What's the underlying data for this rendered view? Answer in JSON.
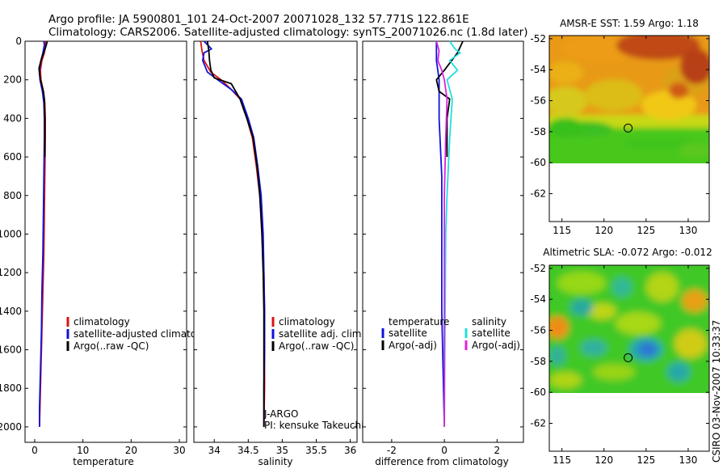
{
  "header": {
    "title_line1": "Argo profile: JA 5900801_101 24-Oct-2007 20071028_132 57.771S 122.861E",
    "title_line2": "Climatology: CARS2006. Satellite-adjusted climatology: synTS_20071026.nc (1.8d later)"
  },
  "footer": {
    "credit": "CSIRO 03-Nov-2007 10:33:37"
  },
  "chart_data": [
    {
      "id": "temperature",
      "type": "line",
      "xlabel": "temperature",
      "ylabel": "",
      "xlim": [
        -2,
        31.5
      ],
      "ylim": [
        2080,
        0
      ],
      "xticks": [
        0,
        10,
        20,
        30
      ],
      "yticks": [
        0,
        200,
        400,
        600,
        800,
        1000,
        1200,
        1400,
        1600,
        1800,
        2000
      ],
      "legend": {
        "position": "center-right",
        "entries": [
          {
            "label": "climatology",
            "color": "#dd1111"
          },
          {
            "label": "satellite-adjusted climatology",
            "color": "#1111dd"
          },
          {
            "label": "Argo(..raw -QC)",
            "color": "#000000"
          }
        ]
      },
      "series": [
        {
          "name": "climatology",
          "color": "#dd1111",
          "points": [
            [
              2.2,
              0
            ],
            [
              2.3,
              20
            ],
            [
              2.0,
              60
            ],
            [
              1.5,
              100
            ],
            [
              1.2,
              150
            ],
            [
              1.3,
              200
            ],
            [
              1.8,
              260
            ],
            [
              2.1,
              320
            ],
            [
              2.2,
              400
            ],
            [
              2.2,
              500
            ],
            [
              2.1,
              700
            ],
            [
              2.0,
              900
            ],
            [
              1.9,
              1100
            ],
            [
              1.7,
              1300
            ],
            [
              1.5,
              1500
            ],
            [
              1.3,
              1700
            ],
            [
              1.1,
              1900
            ],
            [
              1.0,
              2000
            ]
          ]
        },
        {
          "name": "satellite-adjusted climatology",
          "color": "#1111dd",
          "points": [
            [
              1.9,
              0
            ],
            [
              2.0,
              20
            ],
            [
              1.7,
              60
            ],
            [
              1.3,
              100
            ],
            [
              1.0,
              150
            ],
            [
              1.1,
              200
            ],
            [
              1.6,
              260
            ],
            [
              1.9,
              320
            ],
            [
              2.0,
              400
            ],
            [
              2.0,
              500
            ],
            [
              1.9,
              700
            ],
            [
              1.8,
              900
            ],
            [
              1.7,
              1100
            ],
            [
              1.5,
              1300
            ],
            [
              1.4,
              1500
            ],
            [
              1.2,
              1700
            ],
            [
              1.0,
              1900
            ],
            [
              1.0,
              2000
            ]
          ]
        },
        {
          "name": "Argo(..raw -QC)",
          "color": "#000000",
          "points": [
            [
              2.6,
              0
            ],
            [
              2.4,
              20
            ],
            [
              2.0,
              50
            ],
            [
              1.3,
              100
            ],
            [
              0.9,
              140
            ],
            [
              1.0,
              170
            ],
            [
              1.2,
              200
            ],
            [
              1.8,
              260
            ],
            [
              2.0,
              300
            ],
            [
              2.1,
              400
            ],
            [
              2.1,
              600
            ]
          ]
        }
      ]
    },
    {
      "id": "salinity",
      "type": "line",
      "xlabel": "salinity",
      "ylabel": "",
      "xlim": [
        33.7,
        36.1
      ],
      "ylim": [
        2080,
        0
      ],
      "xticks": [
        34,
        34.5,
        35,
        35.5,
        36
      ],
      "yticks": [],
      "legend": {
        "position": "center-right",
        "entries": [
          {
            "label": "climatology",
            "color": "#dd1111"
          },
          {
            "label": "satellite adj. clim.",
            "color": "#1111dd"
          },
          {
            "label": "Argo(..raw -QC)",
            "color": "#000000"
          }
        ]
      },
      "annotations": [
        "J-ARGO",
        "PI: kensuke Takeuchi"
      ],
      "series": [
        {
          "name": "climatology",
          "color": "#dd1111",
          "points": [
            [
              33.8,
              0
            ],
            [
              33.82,
              50
            ],
            [
              33.85,
              100
            ],
            [
              33.95,
              160
            ],
            [
              34.1,
              200
            ],
            [
              34.25,
              250
            ],
            [
              34.38,
              300
            ],
            [
              34.48,
              400
            ],
            [
              34.56,
              500
            ],
            [
              34.62,
              650
            ],
            [
              34.67,
              800
            ],
            [
              34.71,
              1000
            ],
            [
              34.73,
              1200
            ],
            [
              34.74,
              1400
            ],
            [
              34.74,
              1600
            ],
            [
              34.74,
              1800
            ],
            [
              34.73,
              2000
            ]
          ]
        },
        {
          "name": "satellite adj. clim.",
          "color": "#1111dd",
          "points": [
            [
              33.85,
              0
            ],
            [
              33.96,
              40
            ],
            [
              33.85,
              60
            ],
            [
              33.83,
              100
            ],
            [
              33.9,
              160
            ],
            [
              34.05,
              200
            ],
            [
              34.25,
              250
            ],
            [
              34.4,
              300
            ],
            [
              34.5,
              400
            ],
            [
              34.58,
              500
            ],
            [
              34.64,
              650
            ],
            [
              34.69,
              800
            ],
            [
              34.72,
              1000
            ],
            [
              34.73,
              1200
            ],
            [
              34.74,
              1400
            ],
            [
              34.74,
              1600
            ],
            [
              34.73,
              1800
            ],
            [
              34.73,
              2000
            ]
          ]
        },
        {
          "name": "Argo(..raw -QC)",
          "color": "#000000",
          "points": [
            [
              33.9,
              0
            ],
            [
              33.92,
              50
            ],
            [
              33.93,
              100
            ],
            [
              33.95,
              150
            ],
            [
              34.0,
              190
            ],
            [
              34.25,
              220
            ],
            [
              34.38,
              300
            ],
            [
              34.48,
              400
            ],
            [
              34.57,
              500
            ],
            [
              34.63,
              650
            ],
            [
              34.67,
              800
            ],
            [
              34.7,
              1000
            ],
            [
              34.72,
              1200
            ],
            [
              34.73,
              1400
            ],
            [
              34.73,
              1600
            ],
            [
              34.73,
              1800
            ],
            [
              34.73,
              2000
            ]
          ]
        }
      ]
    },
    {
      "id": "difference",
      "type": "line",
      "xlabel": "difference from climatology",
      "ylabel": "",
      "xlim": [
        -3.1,
        3.0
      ],
      "ylim": [
        2080,
        0
      ],
      "xticks": [
        -2,
        0,
        2
      ],
      "yticks": [],
      "legend": {
        "position": "center",
        "columns": [
          {
            "heading": "temperature",
            "entries": [
              {
                "label": "satellite",
                "color": "#1111dd"
              },
              {
                "label": "Argo(-adj)",
                "color": "#000000"
              }
            ]
          },
          {
            "heading": "salinity",
            "entries": [
              {
                "label": "satellite",
                "color": "#22dddd"
              },
              {
                "label": "Argo(-adj)",
                "color": "#dd22dd"
              }
            ]
          }
        ]
      },
      "series": [
        {
          "name": "temperature satellite",
          "color": "#1111dd",
          "points": [
            [
              -0.3,
              0
            ],
            [
              -0.3,
              100
            ],
            [
              -0.2,
              200
            ],
            [
              -0.2,
              400
            ],
            [
              -0.1,
              700
            ],
            [
              -0.1,
              1000
            ],
            [
              -0.1,
              1400
            ],
            [
              0.0,
              2000
            ]
          ]
        },
        {
          "name": "temperature Argo(-adj)",
          "color": "#000000",
          "points": [
            [
              0.7,
              0
            ],
            [
              0.5,
              60
            ],
            [
              0.0,
              150
            ],
            [
              -0.3,
              200
            ],
            [
              -0.2,
              260
            ],
            [
              0.2,
              300
            ],
            [
              0.1,
              400
            ],
            [
              0.1,
              600
            ]
          ]
        },
        {
          "name": "salinity satellite",
          "color": "#22dddd",
          "points": [
            [
              0.2,
              0
            ],
            [
              0.4,
              40
            ],
            [
              0.6,
              60
            ],
            [
              0.2,
              100
            ],
            [
              0.5,
              150
            ],
            [
              0.1,
              200
            ],
            [
              0.3,
              300
            ],
            [
              0.2,
              500
            ],
            [
              0.1,
              800
            ],
            [
              0.05,
              1000
            ],
            [
              0.0,
              2000
            ]
          ]
        },
        {
          "name": "salinity Argo(-adj)",
          "color": "#dd22dd",
          "points": [
            [
              -0.3,
              0
            ],
            [
              -0.2,
              50
            ],
            [
              -0.25,
              100
            ],
            [
              -0.1,
              150
            ],
            [
              0.0,
              200
            ],
            [
              0.1,
              300
            ],
            [
              0.05,
              500
            ],
            [
              0.0,
              800
            ],
            [
              0.0,
              1000
            ],
            [
              0.0,
              2000
            ]
          ]
        }
      ]
    },
    {
      "id": "sst_map",
      "type": "heatmap",
      "title": "AMSR-E SST: 1.59  Argo: 1.18",
      "xlim": [
        113.5,
        132.5
      ],
      "ylim": [
        -63.8,
        -51.8
      ],
      "xticks": [
        115,
        120,
        125,
        130
      ],
      "yticks": [
        -52,
        -54,
        -56,
        -58,
        -60,
        -62
      ],
      "marker": {
        "lon": 122.861,
        "lat": -57.771
      },
      "data_lat_range": [
        -60,
        -51.8
      ]
    },
    {
      "id": "sla_map",
      "type": "heatmap",
      "title": "Altimetric SLA: -0.072  Argo: -0.012",
      "xlim": [
        113.5,
        132.5
      ],
      "ylim": [
        -63.8,
        -51.8
      ],
      "xticks": [
        115,
        120,
        125,
        130
      ],
      "yticks": [
        -52,
        -54,
        -56,
        -58,
        -60,
        -62
      ],
      "marker": {
        "lon": 122.861,
        "lat": -57.771
      },
      "data_lat_range": [
        -60,
        -51.8
      ]
    }
  ]
}
